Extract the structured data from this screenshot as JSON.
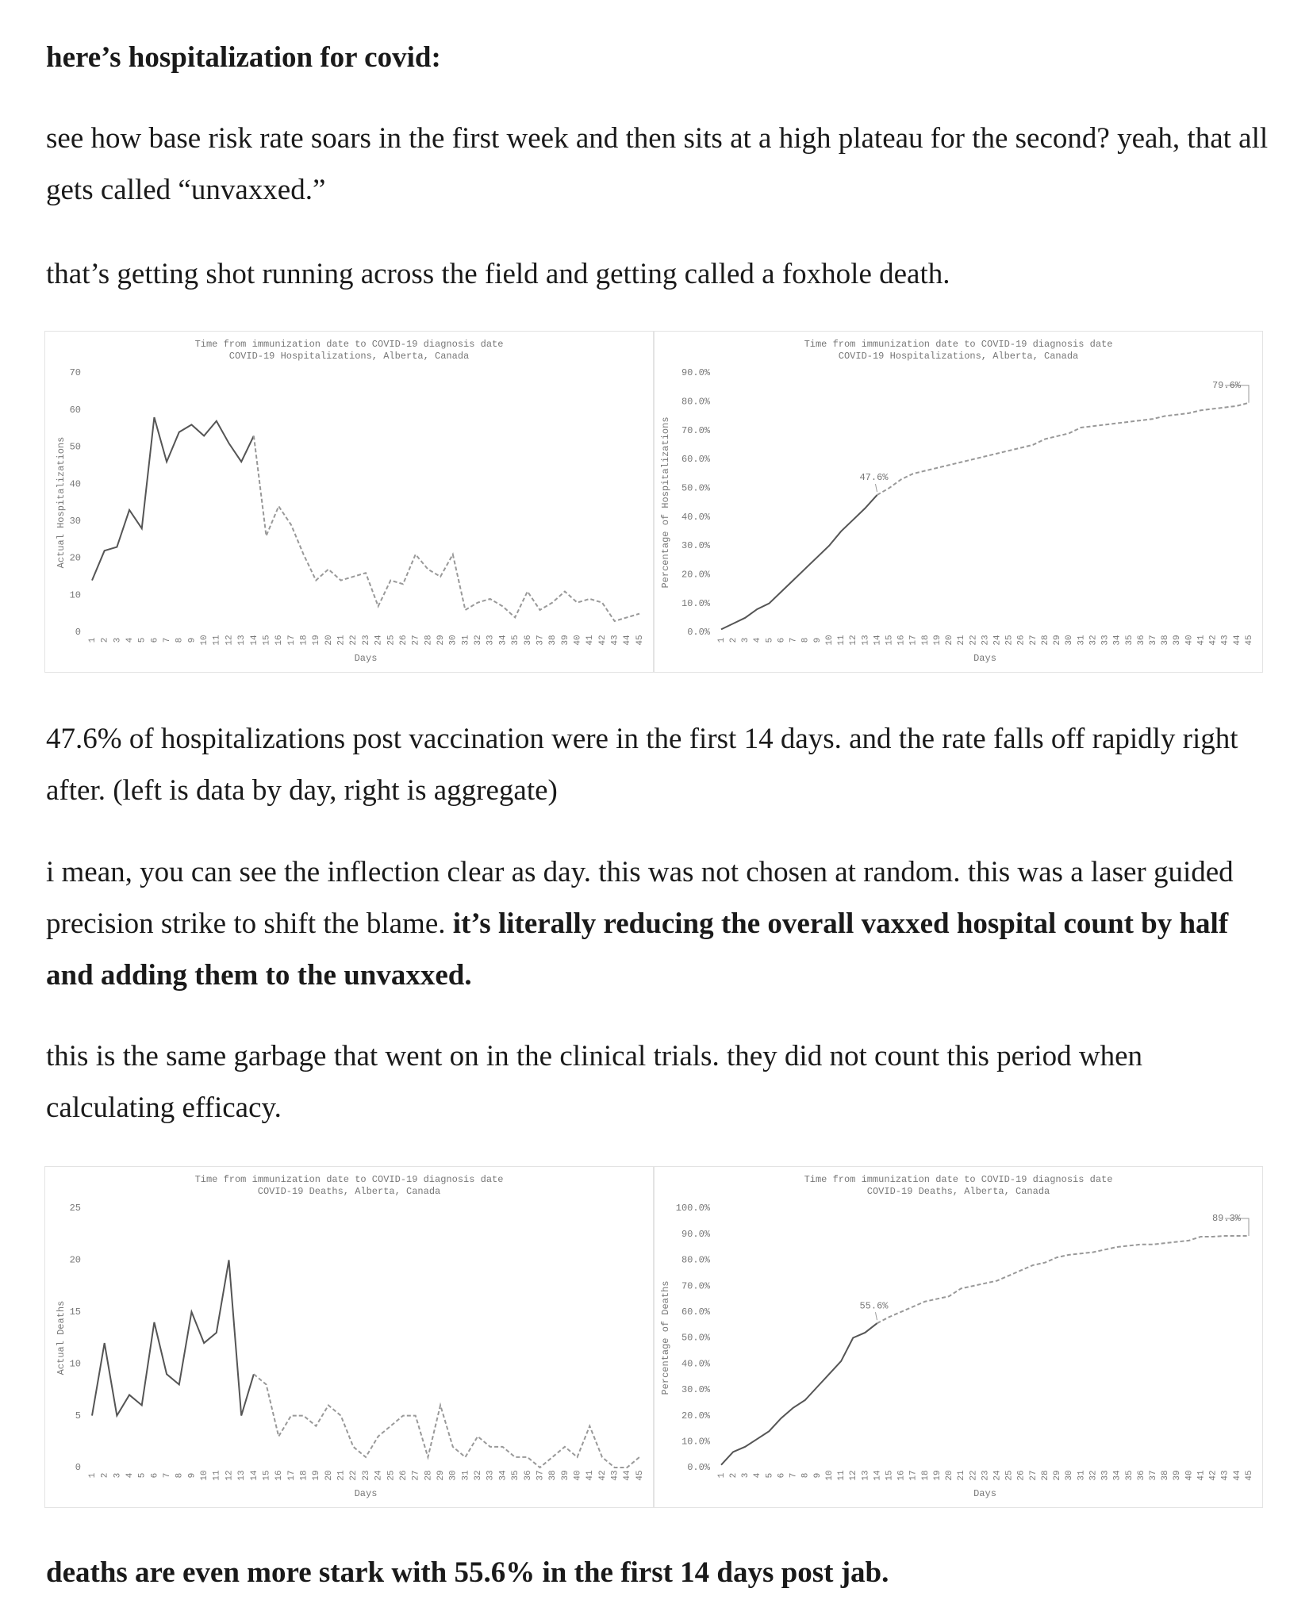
{
  "paragraphs": [
    [
      {
        "text": "here’s hospitalization for covid:",
        "bold": true
      }
    ],
    [
      {
        "text": "see how base risk rate soars in the first week and then sits at a high plateau for the second? yeah, that all gets called “unvaxxed.”",
        "bold": false
      }
    ],
    [
      {
        "text": "that’s getting shot running across the field and getting called a foxhole death.",
        "bold": false
      }
    ],
    [
      {
        "text": "47.6% of hospitalizations post vaccination were in the first 14 days. and the rate falls off rapidly right after. (left is data by day, right is aggregate)",
        "bold": false
      }
    ],
    [
      {
        "text": "i mean, you can see the inflection clear as day. this was not chosen at random. this was a laser guided precision strike to shift the blame. ",
        "bold": false
      },
      {
        "text": "it’s literally reducing the overall vaxxed hospital count by half and adding them to the unvaxxed.",
        "bold": true
      }
    ],
    [
      {
        "text": "this is the same garbage that went on in the clinical trials. they did not count this period when calculating efficacy.",
        "bold": false
      }
    ],
    [
      {
        "text": "deaths are even more stark with 55.6% in the first 14 days post jab.",
        "bold": true
      }
    ]
  ],
  "chart_data": [
    {
      "type": "line",
      "title": "Time from immunization date to COVID-19 diagnosis date",
      "subtitle": "COVID-19 Hospitalizations, Alberta, Canada",
      "y_label": "Actual Hospitalizations",
      "x_label": "Days",
      "categories": [
        "1",
        "2",
        "3",
        "4",
        "5",
        "6",
        "7",
        "8",
        "9",
        "10",
        "11",
        "12",
        "13",
        "14",
        "15",
        "16",
        "17",
        "18",
        "19",
        "20",
        "21",
        "22",
        "23",
        "24",
        "25",
        "26",
        "27",
        "28",
        "29",
        "30",
        "31",
        "32",
        "33",
        "34",
        "35",
        "36",
        "37",
        "38",
        "39",
        "40",
        "41",
        "42",
        "43",
        "44",
        "45"
      ],
      "values": [
        14,
        22,
        23,
        33,
        28,
        58,
        46,
        54,
        56,
        53,
        57,
        51,
        46,
        53,
        26,
        34,
        29,
        21,
        14,
        17,
        14,
        15,
        16,
        7,
        14,
        13,
        21,
        17,
        15,
        21,
        6,
        8,
        9,
        7,
        4,
        11,
        6,
        8,
        11,
        8,
        9,
        8,
        3,
        4,
        5
      ],
      "dashed_after": 14,
      "color": "#555555",
      "dash_color": "#999999",
      "ylim": [
        0,
        70
      ],
      "yticks": [
        0,
        10,
        20,
        30,
        40,
        50,
        60,
        70
      ]
    },
    {
      "type": "line",
      "title": "Time from immunization date to COVID-19 diagnosis date",
      "subtitle": "COVID-19 Hospitalizations, Alberta, Canada",
      "y_label": "Percentage of Hospitalizations",
      "x_label": "Days",
      "categories": [
        "1",
        "2",
        "3",
        "4",
        "5",
        "6",
        "7",
        "8",
        "9",
        "10",
        "11",
        "12",
        "13",
        "14",
        "15",
        "16",
        "17",
        "18",
        "19",
        "20",
        "21",
        "22",
        "23",
        "24",
        "25",
        "26",
        "27",
        "28",
        "29",
        "30",
        "31",
        "32",
        "33",
        "34",
        "35",
        "36",
        "37",
        "38",
        "39",
        "40",
        "41",
        "42",
        "43",
        "44",
        "45"
      ],
      "values": [
        1,
        3,
        5,
        8,
        10,
        14,
        18,
        22,
        26,
        30,
        35,
        39,
        43,
        47.6,
        50,
        53,
        55,
        56,
        57,
        58,
        59,
        60,
        61,
        62,
        63,
        64,
        65,
        67,
        68,
        69,
        71,
        71.5,
        72,
        72.5,
        73,
        73.5,
        74,
        75,
        75.5,
        76,
        77,
        77.5,
        78,
        78.5,
        79.6
      ],
      "value_labels": [
        null,
        null,
        null,
        null,
        null,
        null,
        null,
        null,
        null,
        null,
        null,
        null,
        null,
        "47.6%",
        null,
        null,
        null,
        null,
        null,
        null,
        null,
        null,
        null,
        null,
        null,
        null,
        null,
        null,
        null,
        null,
        null,
        null,
        null,
        null,
        null,
        null,
        null,
        null,
        null,
        null,
        null,
        null,
        null,
        null,
        "79.6%"
      ],
      "dashed_after": 14,
      "color": "#555555",
      "dash_color": "#999999",
      "ylim": [
        0,
        90
      ],
      "yticks": [
        {
          "value": 0,
          "label": "0.0%"
        },
        {
          "value": 10,
          "label": "10.0%"
        },
        {
          "value": 20,
          "label": "20.0%"
        },
        {
          "value": 30,
          "label": "30.0%"
        },
        {
          "value": 40,
          "label": "40.0%"
        },
        {
          "value": 50,
          "label": "50.0%"
        },
        {
          "value": 60,
          "label": "60.0%"
        },
        {
          "value": 70,
          "label": "70.0%"
        },
        {
          "value": 80,
          "label": "80.0%"
        },
        {
          "value": 90,
          "label": "90.0%"
        }
      ]
    },
    {
      "type": "line",
      "title": "Time from immunization date to COVID-19 diagnosis date",
      "subtitle": "COVID-19 Deaths, Alberta, Canada",
      "y_label": "Actual Deaths",
      "x_label": "Days",
      "categories": [
        "1",
        "2",
        "3",
        "4",
        "5",
        "6",
        "7",
        "8",
        "9",
        "10",
        "11",
        "12",
        "13",
        "14",
        "15",
        "16",
        "17",
        "18",
        "19",
        "20",
        "21",
        "22",
        "23",
        "24",
        "25",
        "26",
        "27",
        "28",
        "29",
        "30",
        "31",
        "32",
        "33",
        "34",
        "35",
        "36",
        "37",
        "38",
        "39",
        "40",
        "41",
        "42",
        "43",
        "44",
        "45"
      ],
      "values": [
        5,
        12,
        5,
        7,
        6,
        14,
        9,
        8,
        15,
        12,
        13,
        20,
        5,
        9,
        8,
        3,
        5,
        5,
        4,
        6,
        5,
        2,
        1,
        3,
        4,
        5,
        5,
        1,
        6,
        2,
        1,
        3,
        2,
        2,
        1,
        1,
        0,
        1,
        2,
        1,
        4,
        1,
        0,
        0,
        1
      ],
      "dashed_after": 14,
      "color": "#555555",
      "dash_color": "#999999",
      "ylim": [
        0,
        25
      ],
      "yticks": [
        0,
        5,
        10,
        15,
        20,
        25
      ]
    },
    {
      "type": "line",
      "title": "Time from immunization date to COVID-19 diagnosis date",
      "subtitle": "COVID-19 Deaths, Alberta, Canada",
      "y_label": "Percentage of Deaths",
      "x_label": "Days",
      "categories": [
        "1",
        "2",
        "3",
        "4",
        "5",
        "6",
        "7",
        "8",
        "9",
        "10",
        "11",
        "12",
        "13",
        "14",
        "15",
        "16",
        "17",
        "18",
        "19",
        "20",
        "21",
        "22",
        "23",
        "24",
        "25",
        "26",
        "27",
        "28",
        "29",
        "30",
        "31",
        "32",
        "33",
        "34",
        "35",
        "36",
        "37",
        "38",
        "39",
        "40",
        "41",
        "42",
        "43",
        "44",
        "45"
      ],
      "values": [
        1,
        6,
        8,
        11,
        14,
        19,
        23,
        26,
        31,
        36,
        41,
        50,
        52,
        55.6,
        58,
        60,
        62,
        64,
        65,
        66,
        69,
        70,
        71,
        72,
        74,
        76,
        78,
        79,
        81,
        82,
        82.5,
        83,
        84,
        85,
        85.5,
        86,
        86,
        86.5,
        87,
        87.5,
        89,
        89,
        89.3,
        89.3,
        89.3
      ],
      "value_labels": [
        null,
        null,
        null,
        null,
        null,
        null,
        null,
        null,
        null,
        null,
        null,
        null,
        null,
        "55.6%",
        null,
        null,
        null,
        null,
        null,
        null,
        null,
        null,
        null,
        null,
        null,
        null,
        null,
        null,
        null,
        null,
        null,
        null,
        null,
        null,
        null,
        null,
        null,
        null,
        null,
        null,
        null,
        null,
        null,
        null,
        "89.3%"
      ],
      "dashed_after": 14,
      "color": "#555555",
      "dash_color": "#999999",
      "ylim": [
        0,
        100
      ],
      "yticks": [
        {
          "value": 0,
          "label": "0.0%"
        },
        {
          "value": 10,
          "label": "10.0%"
        },
        {
          "value": 20,
          "label": "20.0%"
        },
        {
          "value": 30,
          "label": "30.0%"
        },
        {
          "value": 40,
          "label": "40.0%"
        },
        {
          "value": 50,
          "label": "50.0%"
        },
        {
          "value": 60,
          "label": "60.0%"
        },
        {
          "value": 70,
          "label": "70.0%"
        },
        {
          "value": 80,
          "label": "80.0%"
        },
        {
          "value": 90,
          "label": "90.0%"
        },
        {
          "value": 100,
          "label": "100.0%"
        }
      ]
    }
  ]
}
